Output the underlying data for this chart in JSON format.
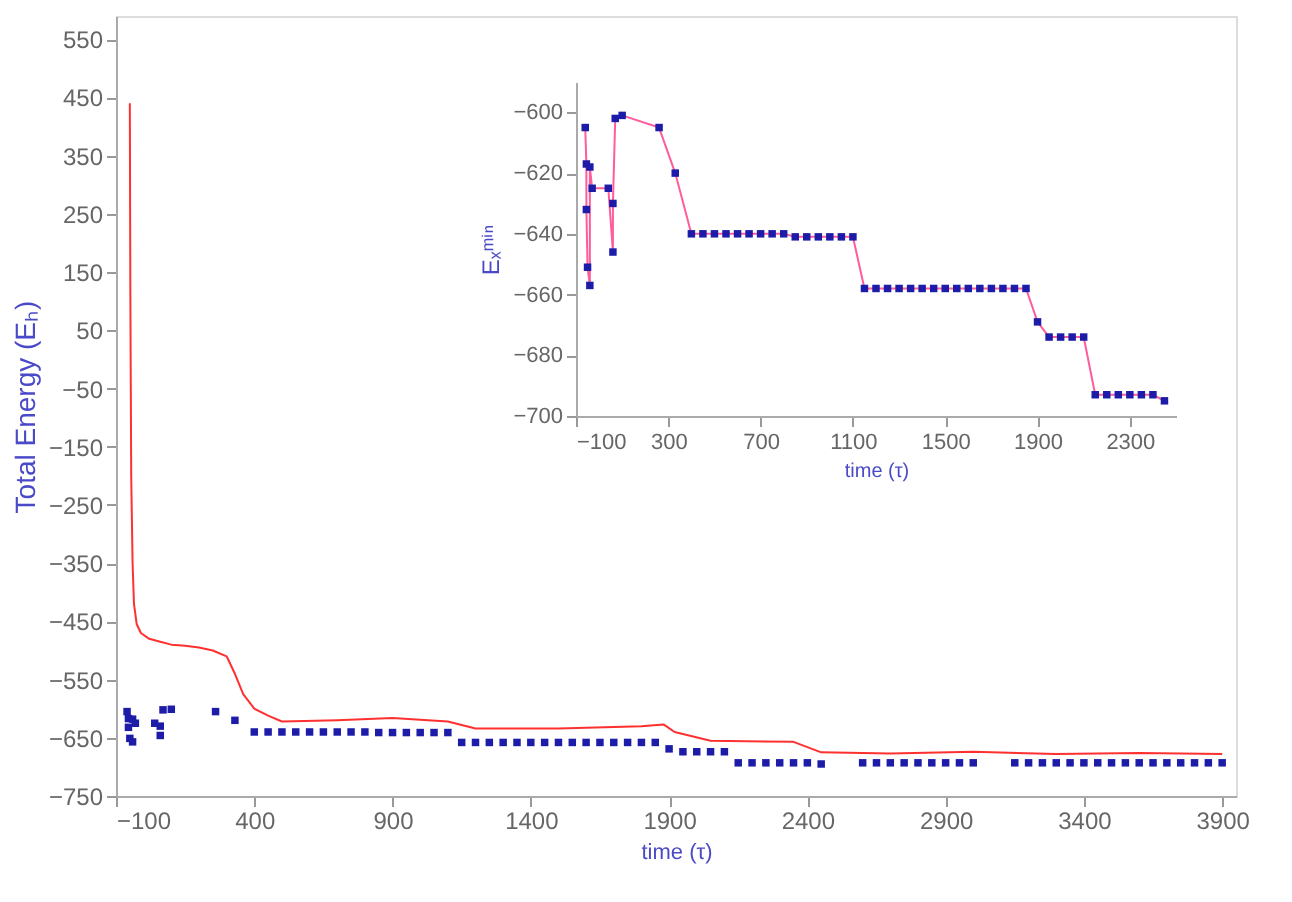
{
  "chart_data": [
    {
      "type": "line",
      "xlabel": "time (τ)",
      "ylabel": "Total Energy (Eₕ)",
      "xlim": [
        -100,
        3950
      ],
      "ylim": [
        -750,
        590
      ],
      "xticks": [
        -100,
        400,
        900,
        1400,
        1900,
        2400,
        2900,
        3400,
        3900
      ],
      "yticks": [
        -750,
        -650,
        -550,
        -450,
        -350,
        -250,
        -150,
        -50,
        50,
        150,
        250,
        350,
        450,
        550
      ],
      "grid": false,
      "series": [
        {
          "color": "#ff3030",
          "marker": "none",
          "x": [
            -50,
            -48,
            -45,
            -40,
            -35,
            -25,
            -10,
            20,
            60,
            100,
            150,
            200,
            250,
            300,
            330,
            360,
            400,
            450,
            500,
            700,
            900,
            1100,
            1200,
            1500,
            1800,
            1880,
            1920,
            2050,
            2350,
            2450,
            2700,
            3000,
            3300,
            3600,
            3900
          ],
          "values": [
            440,
            100,
            -200,
            -350,
            -420,
            -455,
            -470,
            -480,
            -485,
            -490,
            -492,
            -495,
            -500,
            -510,
            -540,
            -575,
            -600,
            -612,
            -622,
            -620,
            -616,
            -622,
            -634,
            -634,
            -630,
            -627,
            -640,
            -655,
            -657,
            -675,
            -677,
            -674,
            -678,
            -676,
            -678
          ]
        },
        {
          "type": "scatter",
          "color": "#1c1ca8",
          "marker": "square",
          "x": [
            -60,
            -55,
            -55,
            -50,
            -40,
            -40,
            -30,
            40,
            60,
            60,
            70,
            100,
            260,
            330,
            400,
            450,
            500,
            550,
            600,
            650,
            700,
            750,
            800,
            850,
            900,
            950,
            1000,
            1050,
            1100,
            1150,
            1200,
            1250,
            1300,
            1350,
            1400,
            1450,
            1500,
            1550,
            1600,
            1650,
            1700,
            1750,
            1800,
            1850,
            1900,
            1950,
            2000,
            2050,
            2100,
            2150,
            2200,
            2250,
            2300,
            2350,
            2400,
            2450,
            2600,
            2650,
            2700,
            2750,
            2800,
            2850,
            2900,
            2950,
            3000,
            3150,
            3200,
            3250,
            3300,
            3350,
            3400,
            3450,
            3500,
            3550,
            3600,
            3650,
            3700,
            3750,
            3800,
            3850,
            3900
          ],
          "values": [
            -605,
            -617,
            -632,
            -651,
            -657,
            -618,
            -625,
            -625,
            -646,
            -630,
            -602,
            -601,
            -605,
            -620,
            -640,
            -640,
            -640,
            -640,
            -640,
            -640,
            -640,
            -640,
            -640,
            -641,
            -641,
            -641,
            -641,
            -641,
            -641,
            -658,
            -658,
            -658,
            -658,
            -658,
            -658,
            -658,
            -658,
            -658,
            -658,
            -658,
            -658,
            -658,
            -658,
            -658,
            -669,
            -674,
            -674,
            -674,
            -674,
            -693,
            -693,
            -693,
            -693,
            -693,
            -693,
            -695,
            -693,
            -693,
            -693,
            -693,
            -693,
            -693,
            -693,
            -693,
            -693,
            -693,
            -693,
            -693,
            -693,
            -693,
            -693,
            -693,
            -693,
            -693,
            -693,
            -693,
            -693,
            -693,
            -693,
            -693,
            -693
          ]
        }
      ]
    },
    {
      "type": "line",
      "xlabel": "time (τ)",
      "ylabel": "Eₓᵐⁱⁿ",
      "xlim": [
        -100,
        2500
      ],
      "ylim": [
        -700,
        -590
      ],
      "xticks": [
        -100,
        300,
        700,
        1100,
        1500,
        1900,
        2300
      ],
      "yticks": [
        -700,
        -680,
        -660,
        -640,
        -620,
        -600
      ],
      "grid": false,
      "x": [
        -60,
        -55,
        -55,
        -50,
        -40,
        -40,
        -30,
        40,
        60,
        60,
        70,
        100,
        260,
        330,
        400,
        450,
        500,
        550,
        600,
        650,
        700,
        750,
        800,
        850,
        900,
        950,
        1000,
        1050,
        1100,
        1150,
        1200,
        1250,
        1300,
        1350,
        1400,
        1450,
        1500,
        1550,
        1600,
        1650,
        1700,
        1750,
        1800,
        1850,
        1900,
        1950,
        2000,
        2050,
        2100,
        2150,
        2200,
        2250,
        2300,
        2350,
        2400,
        2450
      ],
      "series": [
        {
          "color": "#ff5c9c",
          "marker": "none",
          "values": [
            -605,
            -617,
            -632,
            -651,
            -657,
            -618,
            -625,
            -625,
            -646,
            -630,
            -602,
            -601,
            -605,
            -620,
            -640,
            -640,
            -640,
            -640,
            -640,
            -640,
            -640,
            -640,
            -640,
            -641,
            -641,
            -641,
            -641,
            -641,
            -641,
            -658,
            -658,
            -658,
            -658,
            -658,
            -658,
            -658,
            -658,
            -658,
            -658,
            -658,
            -658,
            -658,
            -658,
            -658,
            -669,
            -674,
            -674,
            -674,
            -674,
            -693,
            -693,
            -693,
            -693,
            -693,
            -693,
            -695
          ]
        },
        {
          "type": "scatter",
          "color": "#1c1ca8",
          "marker": "square",
          "values": [
            -605,
            -617,
            -632,
            -651,
            -657,
            -618,
            -625,
            -625,
            -646,
            -630,
            -602,
            -601,
            -605,
            -620,
            -640,
            -640,
            -640,
            -640,
            -640,
            -640,
            -640,
            -640,
            -640,
            -641,
            -641,
            -641,
            -641,
            -641,
            -641,
            -658,
            -658,
            -658,
            -658,
            -658,
            -658,
            -658,
            -658,
            -658,
            -658,
            -658,
            -658,
            -658,
            -658,
            -658,
            -669,
            -674,
            -674,
            -674,
            -674,
            -693,
            -693,
            -693,
            -693,
            -693,
            -693,
            -695
          ]
        }
      ]
    }
  ]
}
